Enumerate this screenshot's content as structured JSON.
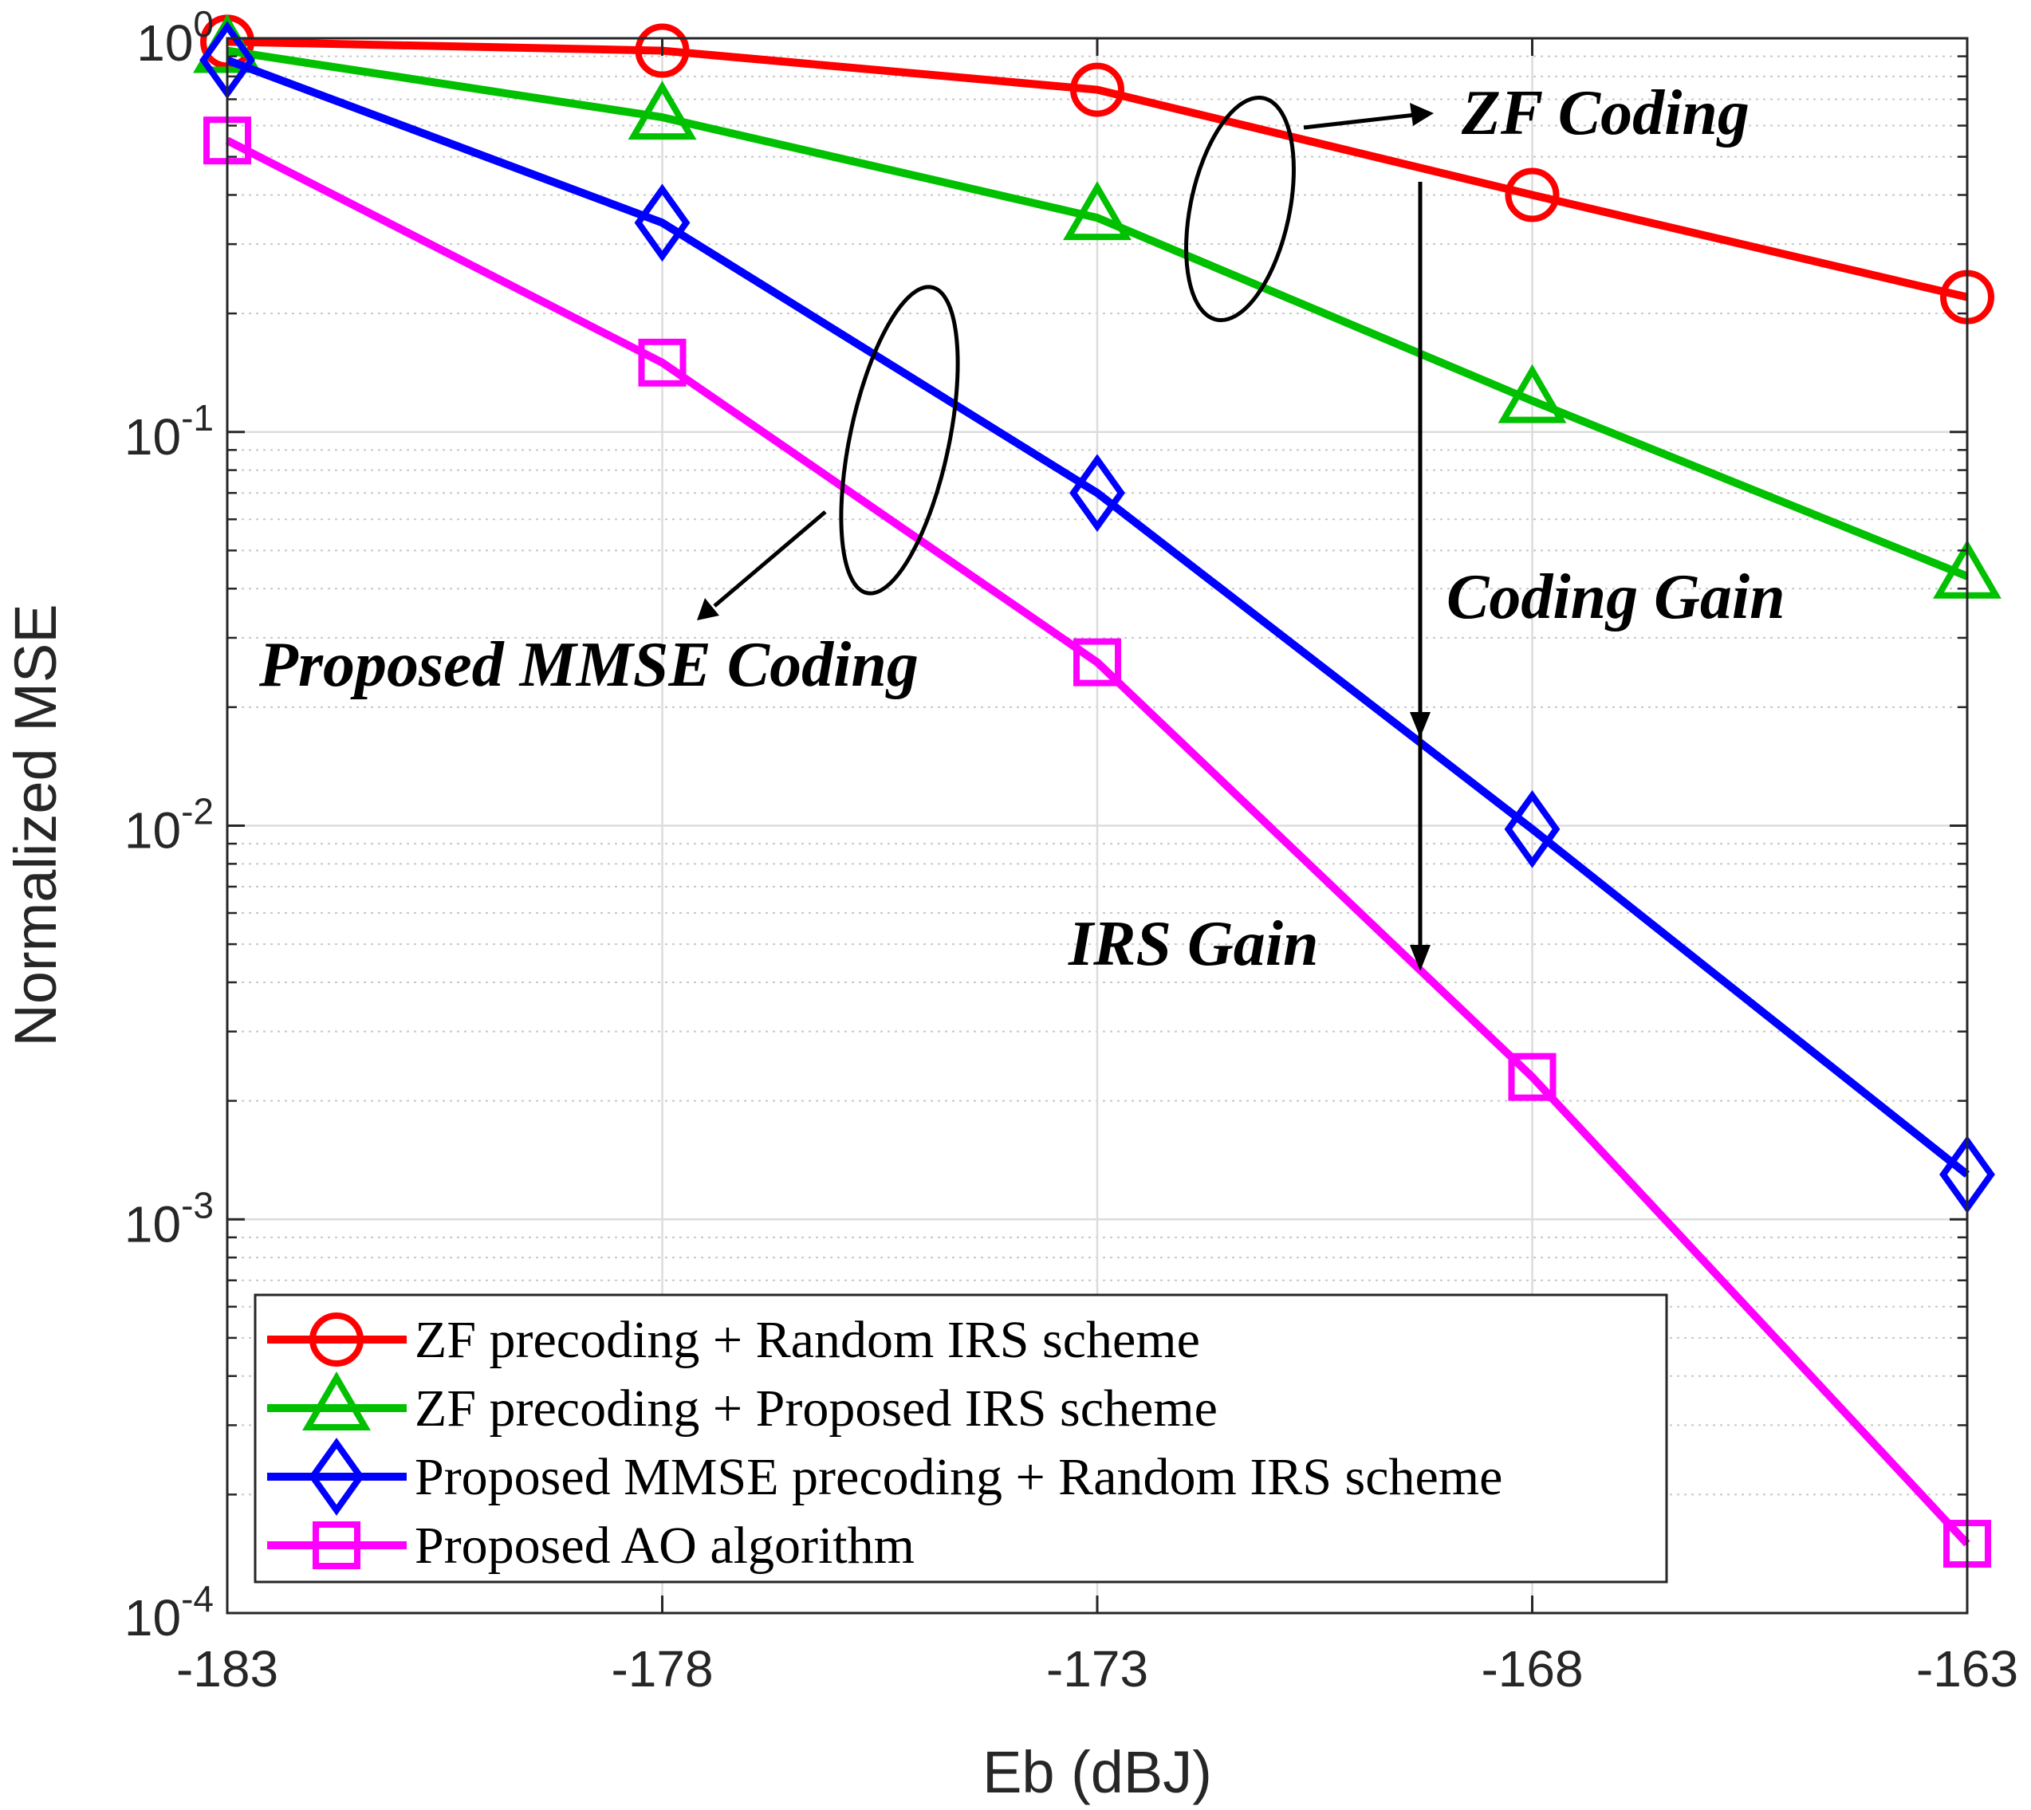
{
  "chart_data": {
    "type": "line",
    "xscale": "linear",
    "yscale": "log",
    "x": [
      -183,
      -178,
      -173,
      -168,
      -163
    ],
    "xlim": [
      -183,
      -163
    ],
    "ylim": [
      0.0001,
      1
    ],
    "xticks": [
      -183,
      -178,
      -173,
      -168,
      -163
    ],
    "xtick_labels": [
      "-183",
      "-178",
      "-173",
      "-168",
      "-163"
    ],
    "yticks": [
      {
        "value": 1,
        "base": "10",
        "exp": "0"
      },
      {
        "value": 0.1,
        "base": "10",
        "exp": "-1"
      },
      {
        "value": 0.01,
        "base": "10",
        "exp": "-2"
      },
      {
        "value": 0.001,
        "base": "10",
        "exp": "-3"
      },
      {
        "value": 0.0001,
        "base": "10",
        "exp": "-4"
      }
    ],
    "xlabel": "Eb (dBJ)",
    "ylabel": "Normalized MSE",
    "grid": true,
    "legend_position": "bottom-left",
    "series": [
      {
        "name": "ZF precoding + Random IRS scheme",
        "color": "#ff0000",
        "marker": "circle",
        "values": [
          0.98,
          0.93,
          0.74,
          0.4,
          0.22
        ]
      },
      {
        "name": "ZF precoding + Proposed IRS scheme",
        "color": "#00c000",
        "marker": "triangle",
        "values": [
          0.93,
          0.63,
          0.35,
          0.12,
          0.043
        ]
      },
      {
        "name": "Proposed MMSE precoding + Random IRS scheme",
        "color": "#0000ff",
        "marker": "diamond",
        "values": [
          0.88,
          0.34,
          0.07,
          0.0098,
          0.0013
        ]
      },
      {
        "name": "Proposed AO algorithm",
        "color": "#ff00ff",
        "marker": "square",
        "values": [
          0.55,
          0.15,
          0.026,
          0.0023,
          0.00015
        ]
      }
    ],
    "annotations": {
      "zf_coding": "ZF Coding",
      "coding_gain": "Coding Gain",
      "irs_gain": "IRS Gain",
      "proposed_mmse_coding": "Proposed MMSE Coding"
    }
  }
}
